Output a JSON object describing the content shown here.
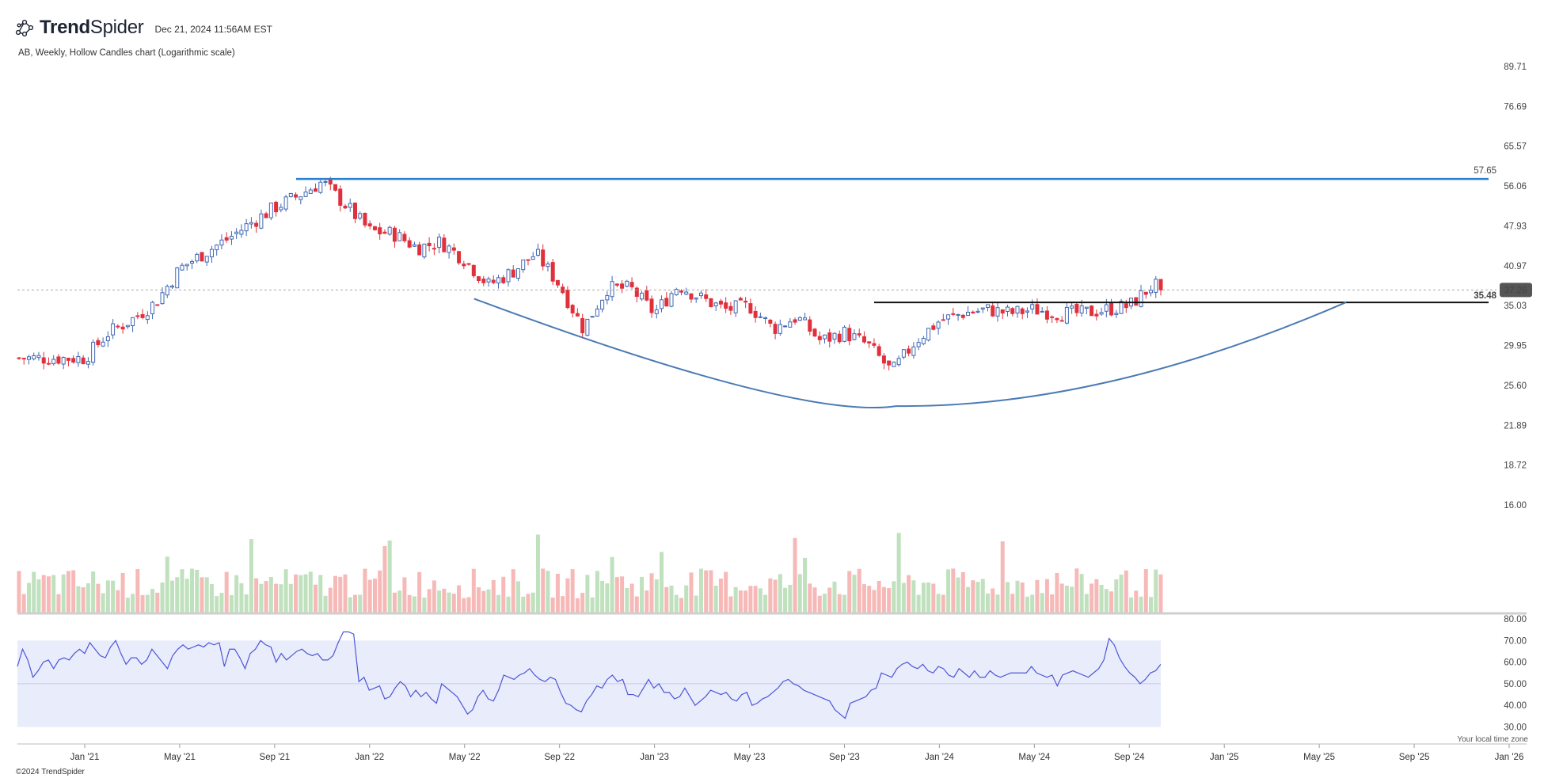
{
  "header": {
    "brand_bold": "Trend",
    "brand_light": "Spider",
    "datetime": "Dec 21, 2024 11:56AM EST",
    "logo_icon": "trendspider-network-logo"
  },
  "subtitle": "AB, Weekly, Hollow Candles chart (Logarithmic scale)",
  "footer": "©2024 TrendSpider",
  "timezone_note": "Your local time zone",
  "colors": {
    "up": "#3f67b4",
    "down": "#e0303c",
    "vol_up": "#bfe1bd",
    "vol_down": "#f6b9b7",
    "resistance": "#2c7fcf",
    "support": "#111111",
    "cup": "#4a7ab5",
    "rsi_line": "#4d56d6",
    "rsi_band": "#e9ecfb",
    "price_badge": "#555555"
  },
  "chart_data": [
    {
      "type": "candlestick",
      "title": "AB, Weekly, Hollow Candles chart (Logarithmic scale)",
      "scale": "log",
      "x_tick_labels": [
        "Jan '21",
        "May '21",
        "Sep '21",
        "Jan '22",
        "May '22",
        "Sep '22",
        "Jan '23",
        "May '23",
        "Sep '23",
        "Jan '24",
        "May '24",
        "Sep '24",
        "Jan '25",
        "May '25",
        "Sep '25",
        "Jan '26"
      ],
      "y_tick_labels": [
        "89.71",
        "76.69",
        "65.57",
        "56.06",
        "47.93",
        "40.97",
        "35.03",
        "29.95",
        "25.60",
        "21.89",
        "18.72",
        "16.00"
      ],
      "y_ticks": [
        89.71,
        76.69,
        65.57,
        56.06,
        47.93,
        40.97,
        35.03,
        29.95,
        25.6,
        21.89,
        18.72,
        16.0
      ],
      "ylim": [
        15.0,
        92.0
      ],
      "weekly_close_path": [
        [
          "Jan '21",
          28.5
        ],
        [
          "Feb '21",
          31.5
        ],
        [
          "Mar '21",
          33.2
        ],
        [
          "Apr '21",
          35.5
        ],
        [
          "May '21",
          40.5
        ],
        [
          "Jun '21",
          43.0
        ],
        [
          "Jul '21",
          45.5
        ],
        [
          "Aug '21",
          48.5
        ],
        [
          "Sep '21",
          51.5
        ],
        [
          "Oct '21",
          54.0
        ],
        [
          "Nov '21",
          57.0
        ],
        [
          "Dec '21",
          52.0
        ],
        [
          "Jan '22",
          47.0
        ],
        [
          "Feb '22",
          46.5
        ],
        [
          "Mar '22",
          44.0
        ],
        [
          "Apr '22",
          45.0
        ],
        [
          "May '22",
          42.0
        ],
        [
          "Jun '22",
          38.0
        ],
        [
          "Jul '22",
          40.0
        ],
        [
          "Aug '22",
          43.0
        ],
        [
          "Sep '22",
          38.0
        ],
        [
          "Oct '22",
          32.0
        ],
        [
          "Nov '22",
          37.5
        ],
        [
          "Dec '22",
          37.5
        ],
        [
          "Jan '23",
          34.0
        ],
        [
          "Feb '23",
          38.0
        ],
        [
          "Mar '23",
          36.0
        ],
        [
          "Apr '23",
          34.5
        ],
        [
          "May '23",
          35.0
        ],
        [
          "Jun '23",
          32.0
        ],
        [
          "Jul '23",
          33.5
        ],
        [
          "Aug '23",
          30.5
        ],
        [
          "Sep '23",
          31.5
        ],
        [
          "Oct '23",
          30.0
        ],
        [
          "Nov '23",
          27.0
        ],
        [
          "Dec '23",
          30.5
        ],
        [
          "Jan '24",
          33.0
        ],
        [
          "Feb '24",
          34.0
        ],
        [
          "Mar '24",
          34.5
        ],
        [
          "Apr '24",
          34.0
        ],
        [
          "May '24",
          34.5
        ],
        [
          "Jun '24",
          34.0
        ],
        [
          "Jul '24",
          34.0
        ],
        [
          "Aug '24",
          34.5
        ],
        [
          "Sep '24",
          35.0
        ],
        [
          "Oct '24",
          38.0
        ],
        [
          "Nov '24",
          36.5
        ],
        [
          "Dec '24",
          37.26
        ]
      ],
      "annotations": [
        {
          "label": "57.65",
          "value": 57.65,
          "kind": "horizontal resistance"
        },
        {
          "label": "35.48",
          "value": 35.48,
          "kind": "horizontal support"
        },
        {
          "label": "37.26",
          "value": 37.26,
          "kind": "last price"
        },
        {
          "kind": "cup curve",
          "from": "Jun '22",
          "to": "Jun '25",
          "bottom": "Nov '23"
        }
      ]
    },
    {
      "type": "bar",
      "title": "",
      "series": [
        {
          "name": "",
          "description": "weekly volume (green = up week, red = down week)"
        }
      ]
    },
    {
      "type": "line",
      "title": "",
      "y_tick_labels": [
        "80.00",
        "70.00",
        "60.00",
        "50.00",
        "40.00",
        "30.00"
      ],
      "ylim": [
        28,
        80
      ],
      "band": [
        30,
        70
      ],
      "midline": 50,
      "values": [
        58,
        66,
        61,
        53,
        56,
        60,
        61,
        57,
        61,
        62,
        61,
        64,
        66,
        64,
        69,
        66,
        63,
        62,
        67,
        70,
        64,
        59,
        62,
        62,
        59,
        61,
        66,
        63,
        60,
        57,
        63,
        66,
        68,
        66,
        67,
        68,
        67,
        69,
        68,
        69,
        58,
        66,
        66,
        62,
        57,
        64,
        66,
        70,
        68,
        67,
        60,
        64,
        61,
        63,
        65,
        66,
        64,
        63,
        64,
        61,
        61,
        63,
        69,
        74,
        74,
        73,
        51,
        53,
        47,
        48,
        49,
        43,
        44,
        48,
        51,
        49,
        44,
        47,
        44,
        46,
        43,
        41,
        50,
        48,
        46,
        44,
        40,
        36,
        38,
        44,
        47,
        43,
        42,
        47,
        54,
        53,
        52,
        54,
        55,
        57,
        54,
        52,
        51,
        53,
        52,
        46,
        41,
        40,
        38,
        37,
        42,
        45,
        49,
        48,
        52,
        54,
        51,
        52,
        45,
        45,
        44,
        48,
        52,
        48,
        50,
        46,
        46,
        43,
        44,
        48,
        44,
        40,
        42,
        44,
        47,
        46,
        45,
        46,
        43,
        42,
        45,
        46,
        40,
        41,
        43,
        44,
        46,
        48,
        51,
        52,
        50,
        49,
        47,
        46,
        45,
        44,
        43,
        42,
        38,
        36,
        34,
        41,
        42,
        43,
        44,
        47,
        48,
        55,
        54,
        53,
        57,
        59,
        60,
        58,
        57,
        59,
        56,
        55,
        58,
        57,
        54,
        53,
        57,
        55,
        53,
        56,
        53,
        53,
        56,
        54,
        53,
        54,
        55,
        55,
        55,
        55,
        58,
        55,
        54,
        53,
        54,
        49,
        54,
        55,
        56,
        55,
        54,
        53,
        55,
        57,
        61,
        71,
        68,
        62,
        58,
        55,
        53,
        50,
        52,
        55,
        56,
        59
      ]
    }
  ]
}
